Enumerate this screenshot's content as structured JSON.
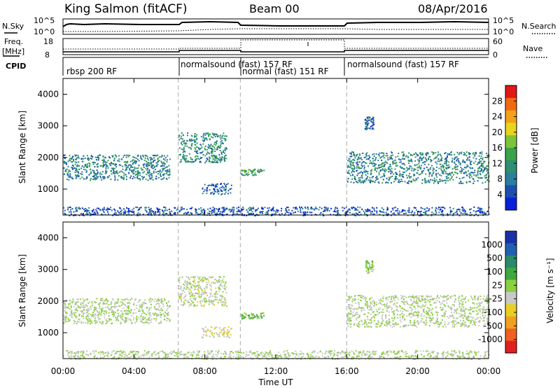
{
  "header": {
    "title": "King Salmon (fitACF)",
    "beam": "Beam 00",
    "date": "08/Apr/2016"
  },
  "top_panels": {
    "nsky_label": "N.Sky",
    "nsky_ticks": [
      "10^5",
      "10^0"
    ],
    "nsearch_label": "N.Search",
    "nsearch_ticks": [
      "10^5",
      "10^0"
    ],
    "freq_label": "Freq.",
    "freq_unit": "[MHz]",
    "freq_ticks": [
      "18",
      "8"
    ],
    "nave_label": "Nave",
    "nave_ticks": [
      "60",
      "0"
    ],
    "cpid_label": "CPID",
    "cpid_segments": [
      {
        "label": "rbsp 200 RF",
        "start": 0.0,
        "end": 6.5
      },
      {
        "label": "normalsound (fast) 157 RF",
        "start": 6.5,
        "end": 10.0
      },
      {
        "label": "normal (fast) 151 RF",
        "start": 10.0,
        "end": 16.0
      },
      {
        "label": "normalsound (fast) 157 RF",
        "start": 16.0,
        "end": 24.0
      }
    ]
  },
  "power_panel": {
    "ylabel": "Slant Range [km]",
    "colorbar_label": "Power [dB]",
    "colorbar_ticks": [
      "28",
      "24",
      "20",
      "16",
      "12",
      "8",
      "4"
    ]
  },
  "velocity_panel": {
    "ylabel": "Slant Range [km]",
    "colorbar_label": "Velocity [m s⁻¹]",
    "colorbar_ticks": [
      "1000",
      "500",
      "100",
      "25",
      "-25",
      "-100",
      "-500",
      "-1000"
    ]
  },
  "colors": {
    "power_scale": [
      "#0a1fd8",
      "#1d4fb0",
      "#2a7fa0",
      "#2f8f70",
      "#3aa24a",
      "#7cc43a",
      "#e8d41e",
      "#f5a019",
      "#f06a14",
      "#e01818"
    ],
    "velocity_scale": [
      "#1b2fa8",
      "#2060b0",
      "#2a8a6a",
      "#40a840",
      "#8cd040",
      "#c8c8c8",
      "#e8d020",
      "#f0a020",
      "#f06020",
      "#e02020"
    ],
    "guide_line": "#aaaaaa"
  },
  "chart_data": [
    {
      "type": "heatmap",
      "title": "Power",
      "xlabel": "Time UT",
      "ylabel": "Slant Range [km]",
      "x_tick_labels": [
        "00:00",
        "04:00",
        "08:00",
        "12:00",
        "16:00",
        "20:00",
        "00:00"
      ],
      "y_tick_labels": [
        "1000",
        "2000",
        "3000",
        "4000"
      ],
      "xlim": [
        0,
        24
      ],
      "ylim": [
        180,
        4500
      ],
      "zlabel": "Power [dB]",
      "zlim": [
        0,
        30
      ],
      "mode_changes_hours": [
        6.5,
        10.0,
        16.0
      ],
      "echo_regions": [
        {
          "t_start": 0.0,
          "t_end": 6.0,
          "range_start": 1300,
          "range_end": 2100,
          "power": 9
        },
        {
          "t_start": 6.5,
          "t_end": 9.2,
          "range_start": 1850,
          "range_end": 2800,
          "power": 10
        },
        {
          "t_start": 7.8,
          "t_end": 9.5,
          "range_start": 850,
          "range_end": 1200,
          "power": 6
        },
        {
          "t_start": 10.0,
          "t_end": 11.3,
          "range_start": 1450,
          "range_end": 1650,
          "power": 12
        },
        {
          "t_start": 16.0,
          "t_end": 24.0,
          "range_start": 1200,
          "range_end": 2200,
          "power": 9
        },
        {
          "t_start": 17.0,
          "t_end": 17.5,
          "range_start": 2900,
          "range_end": 3300,
          "power": 6
        },
        {
          "t_start": 0.0,
          "t_end": 24.0,
          "range_start": 180,
          "range_end": 450,
          "power": 5
        }
      ]
    },
    {
      "type": "heatmap",
      "title": "Velocity",
      "xlabel": "Time UT",
      "ylabel": "Slant Range [km]",
      "x_tick_labels": [
        "00:00",
        "04:00",
        "08:00",
        "12:00",
        "16:00",
        "20:00",
        "00:00"
      ],
      "y_tick_labels": [
        "1000",
        "2000",
        "3000",
        "4000"
      ],
      "xlim": [
        0,
        24
      ],
      "ylim": [
        180,
        4500
      ],
      "zlabel": "Velocity [m s⁻¹]",
      "zlim": [
        -1000,
        1000
      ],
      "mode_changes_hours": [
        6.5,
        10.0,
        16.0
      ],
      "echo_regions": [
        {
          "t_start": 0.0,
          "t_end": 6.0,
          "range_start": 1300,
          "range_end": 2100,
          "velocity": 0
        },
        {
          "t_start": 6.5,
          "t_end": 9.2,
          "range_start": 1850,
          "range_end": 2800,
          "velocity": -40
        },
        {
          "t_start": 7.8,
          "t_end": 9.5,
          "range_start": 850,
          "range_end": 1200,
          "velocity": -150
        },
        {
          "t_start": 10.0,
          "t_end": 11.3,
          "range_start": 1450,
          "range_end": 1650,
          "velocity": 150
        },
        {
          "t_start": 16.0,
          "t_end": 24.0,
          "range_start": 1200,
          "range_end": 2200,
          "velocity": 0
        },
        {
          "t_start": 17.0,
          "t_end": 17.5,
          "range_start": 2900,
          "range_end": 3300,
          "velocity": 100
        },
        {
          "t_start": 0.0,
          "t_end": 24.0,
          "range_start": 180,
          "range_end": 450,
          "velocity": 0
        }
      ]
    }
  ]
}
